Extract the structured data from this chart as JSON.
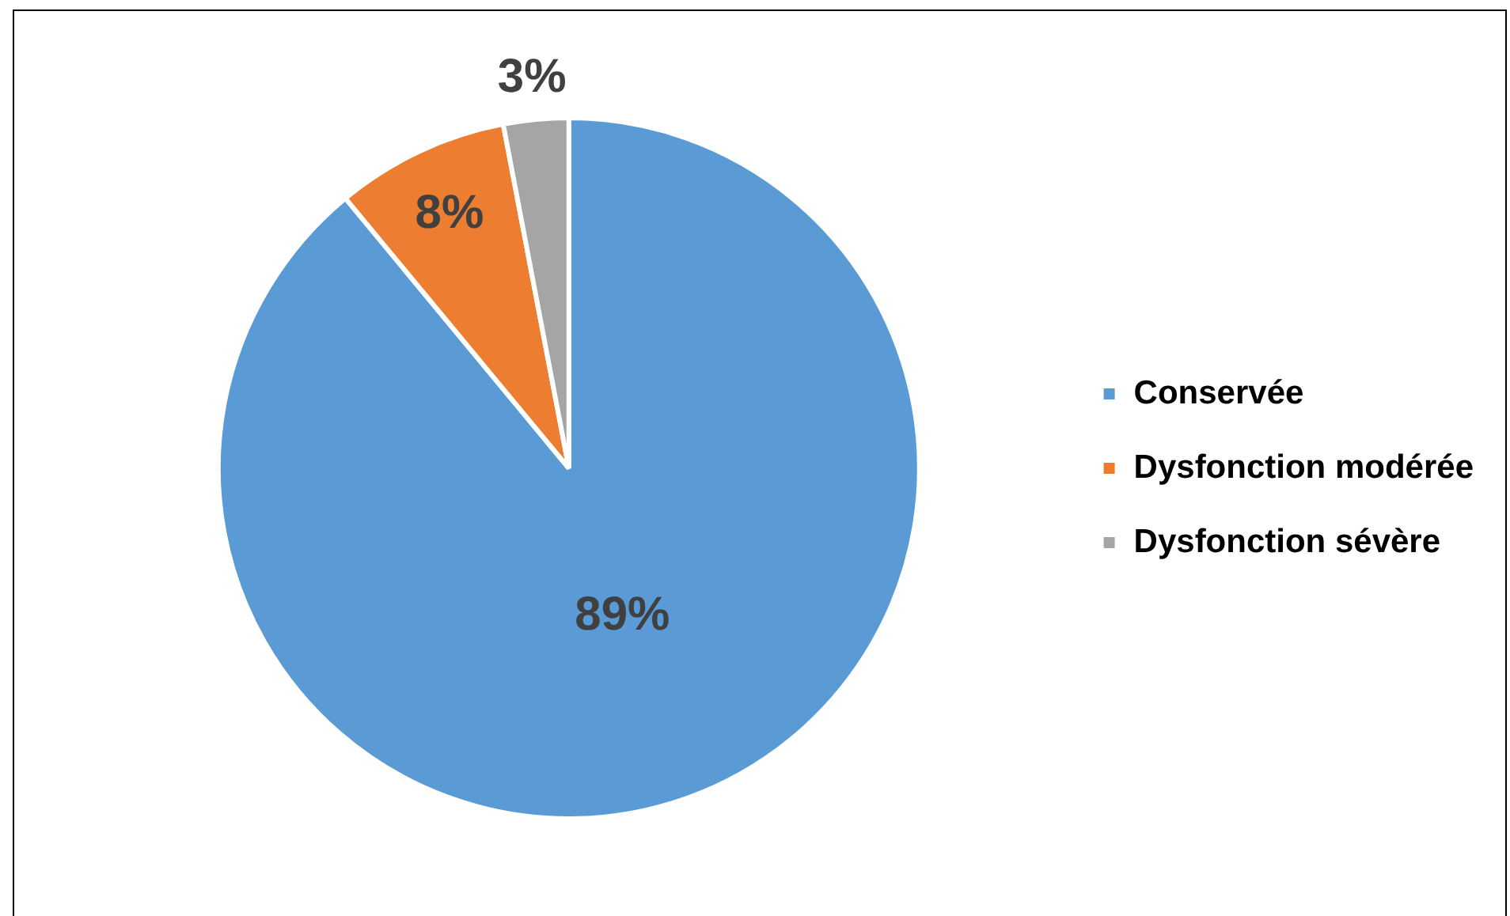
{
  "chart_data": {
    "type": "pie",
    "categories": [
      "Conservée",
      "Dysfonction modérée",
      "Dysfonction sévère"
    ],
    "values": [
      89,
      8,
      3
    ],
    "colors": [
      "#5b9bd5",
      "#ed7d31",
      "#a5a5a5"
    ],
    "value_labels": [
      "89%",
      "8%",
      "3%"
    ],
    "legend": "right"
  }
}
